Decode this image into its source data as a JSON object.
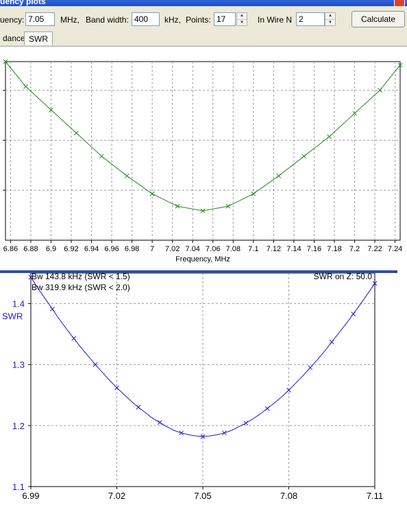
{
  "window": {
    "title": "uency plots"
  },
  "toolbar": {
    "frequency_label": "uency:",
    "frequency_value": "7.05",
    "frequency_unit": "MHz,",
    "bandwidth_label": "Band width:",
    "bandwidth_value": "400",
    "bandwidth_unit": "kHz,",
    "points_label": "Points:",
    "points_value": "17",
    "wire_label": "In Wire N",
    "wire_value": "2",
    "calculate_label": "Calculate"
  },
  "tabs": [
    {
      "label": "dance",
      "active": false
    },
    {
      "label": "SWR",
      "active": true
    }
  ],
  "colors": {
    "top_line": "#1e8a1e",
    "bottom_line": "#1a1ad0",
    "grid": "#9a9a9a"
  },
  "chart_data": [
    {
      "type": "line",
      "title": "",
      "xlabel": "Frequency, MHz",
      "ylabel": "",
      "xlim": [
        6.855,
        7.245
      ],
      "grid": true,
      "x_ticks": [
        "6.86",
        "6.88",
        "6.9",
        "6.92",
        "6.94",
        "6.96",
        "6.98",
        "7",
        "7.02",
        "7.04",
        "7.06",
        "7.08",
        "7.1",
        "7.12",
        "7.14",
        "7.16",
        "7.18",
        "7.2",
        "7.22",
        "7.24"
      ],
      "series": [
        {
          "x": [
            6.85,
            6.875,
            6.9,
            6.925,
            6.95,
            6.975,
            7.0,
            7.025,
            7.05,
            7.075,
            7.1,
            7.125,
            7.15,
            7.175,
            7.2,
            7.225,
            7.25
          ],
          "y": [
            1.0,
            0.86,
            0.73,
            0.6,
            0.47,
            0.36,
            0.26,
            0.19,
            0.165,
            0.19,
            0.26,
            0.36,
            0.47,
            0.58,
            0.71,
            0.84,
            0.98
          ]
        }
      ]
    },
    {
      "type": "line",
      "title": "",
      "xlabel": "",
      "ylabel": "SWR",
      "xlim": [
        6.99,
        7.11
      ],
      "ylim": [
        1.1,
        1.45
      ],
      "grid": true,
      "x_ticks": [
        "6.99",
        "7.02",
        "7.05",
        "7.08",
        "7.11"
      ],
      "y_ticks": [
        "1.1",
        "1.2",
        "1.3",
        "1.4"
      ],
      "annotations": [
        "Bw 143.8 kHz (SWR < 1.5)",
        "Bw 319.9 kHz (SWR < 2.0)",
        "SWR on Z: 50.0"
      ],
      "series": [
        {
          "x": [
            6.99,
            6.9925,
            6.995,
            6.9975,
            7.0,
            7.0025,
            7.005,
            7.0075,
            7.01,
            7.0125,
            7.015,
            7.0175,
            7.02,
            7.0225,
            7.025,
            7.0275,
            7.03,
            7.0325,
            7.035,
            7.0375,
            7.04,
            7.0425,
            7.045,
            7.0475,
            7.05,
            7.0525,
            7.055,
            7.0575,
            7.06,
            7.0625,
            7.065,
            7.0675,
            7.07,
            7.0725,
            7.075,
            7.0775,
            7.08,
            7.0825,
            7.085,
            7.0875,
            7.09,
            7.0925,
            7.095,
            7.0975,
            7.1,
            7.1025,
            7.105,
            7.1075,
            7.11
          ],
          "y": [
            1.443,
            1.425,
            1.408,
            1.391,
            1.374,
            1.358,
            1.343,
            1.328,
            1.314,
            1.3,
            1.287,
            1.274,
            1.262,
            1.251,
            1.24,
            1.23,
            1.221,
            1.212,
            1.205,
            1.198,
            1.192,
            1.188,
            1.185,
            1.183,
            1.182,
            1.183,
            1.185,
            1.188,
            1.192,
            1.198,
            1.204,
            1.211,
            1.219,
            1.228,
            1.237,
            1.247,
            1.258,
            1.27,
            1.282,
            1.295,
            1.308,
            1.322,
            1.337,
            1.352,
            1.367,
            1.383,
            1.399,
            1.416,
            1.433
          ]
        }
      ]
    }
  ]
}
